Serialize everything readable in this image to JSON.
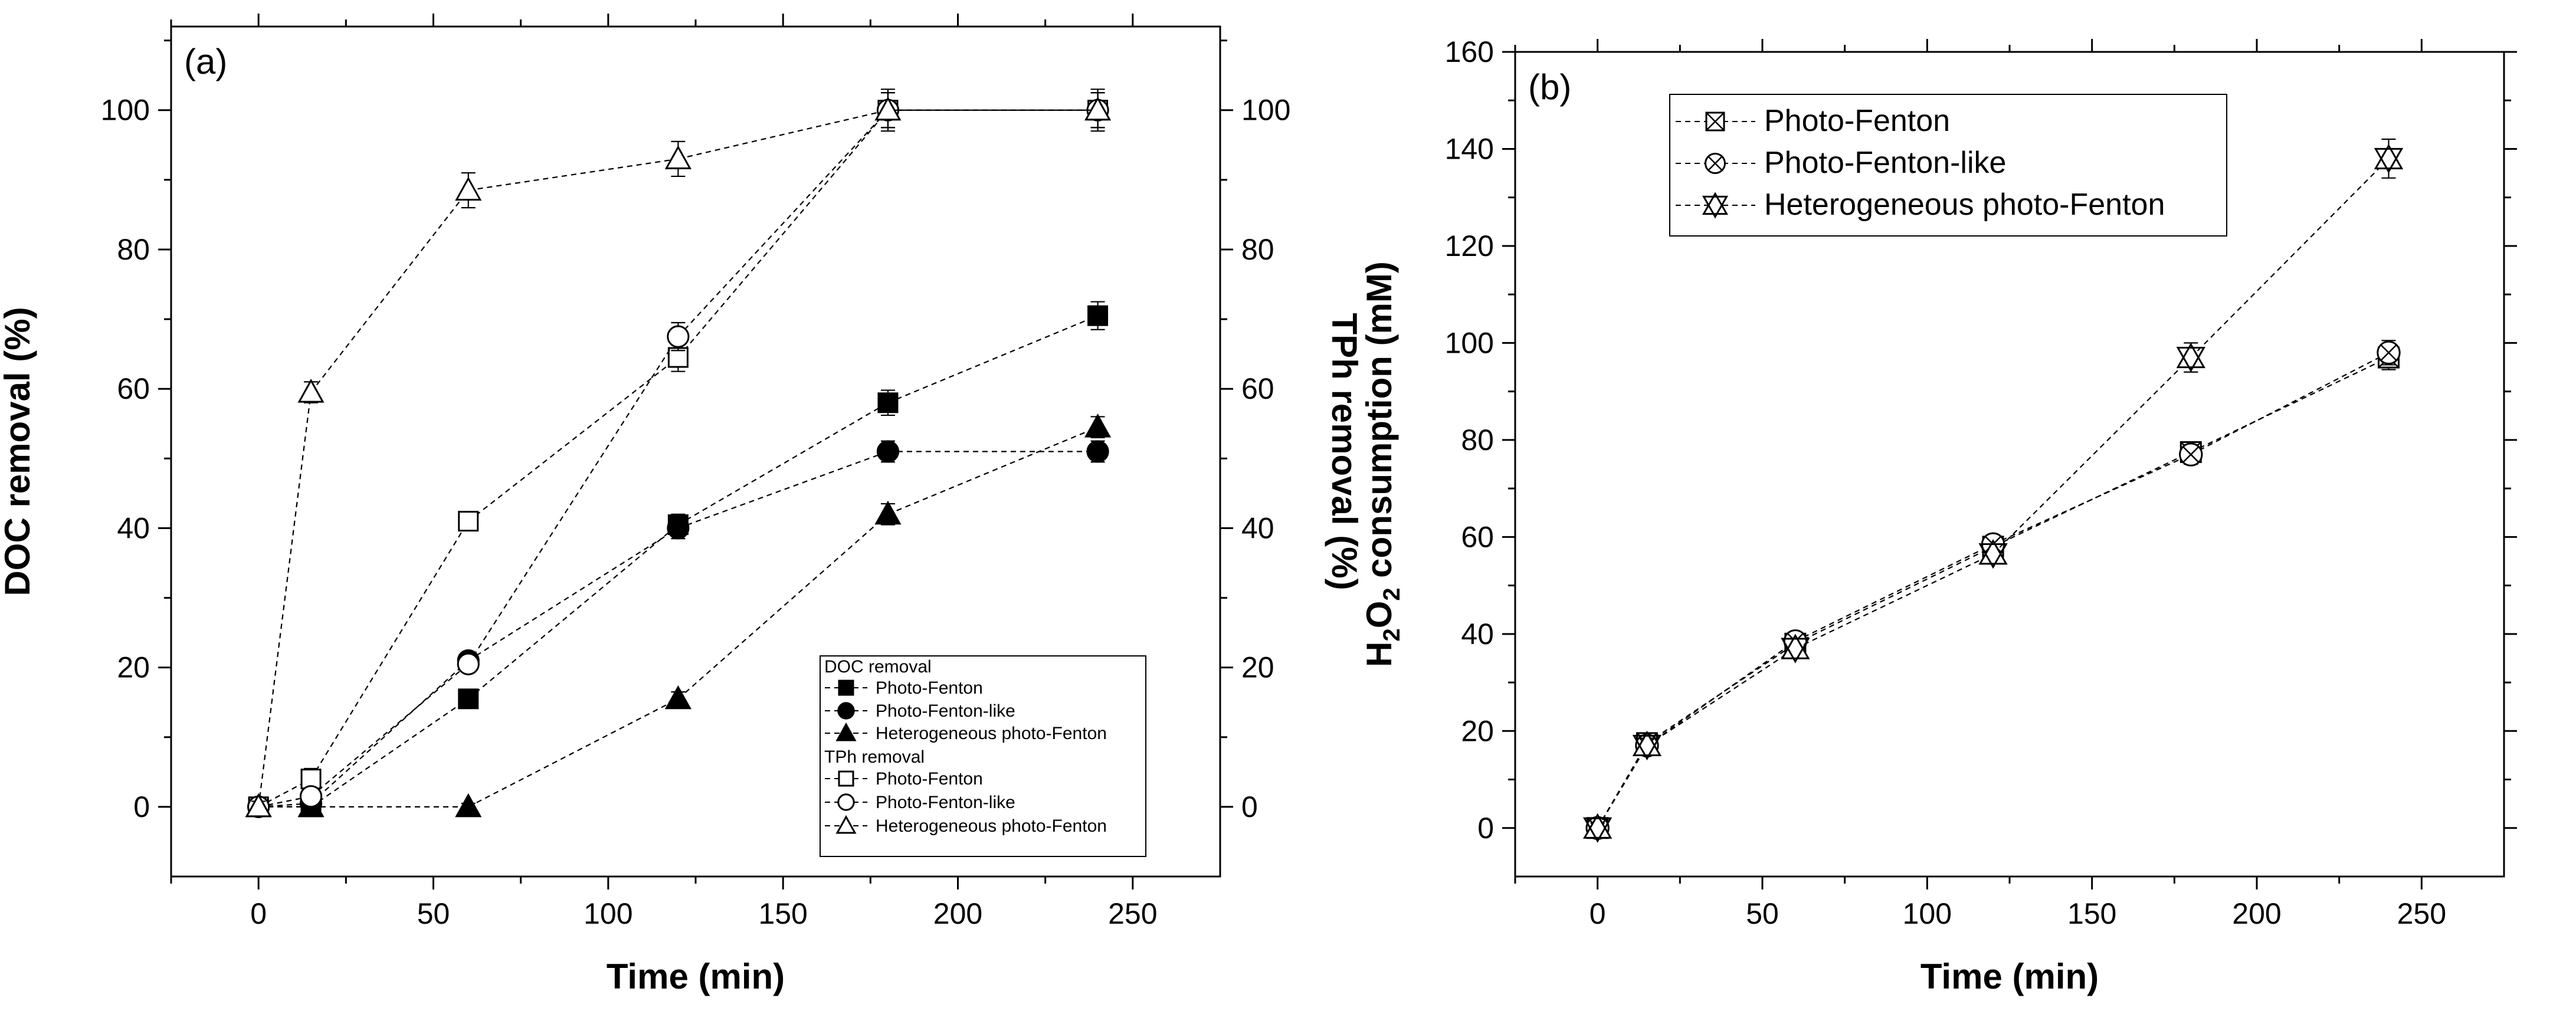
{
  "chart_data": [
    {
      "type": "line",
      "panel_label": "(a)",
      "xlabel": "Time (min)",
      "ylabel": "DOC removal (%)",
      "ylabel_right": "TPh removal (%)",
      "x_ticks": [
        "0",
        "50",
        "100",
        "150",
        "200",
        "250"
      ],
      "y_ticks": [
        "0",
        "20",
        "40",
        "60",
        "80",
        "100"
      ],
      "y2_ticks": [
        "0",
        "20",
        "40",
        "60",
        "80",
        "100"
      ],
      "xlim": [
        -25,
        275
      ],
      "ylim": [
        -10,
        112
      ],
      "legend": {
        "group1_title": "DOC removal",
        "group2_title": "TPh removal",
        "placement": "bottom-right"
      },
      "series": [
        {
          "name": "Photo-Fenton",
          "group": "DOC removal",
          "marker": "filled-square",
          "x": [
            0,
            15,
            60,
            120,
            180,
            240
          ],
          "values": [
            0,
            0,
            15.5,
            40.5,
            58,
            70.5
          ],
          "error": [
            0.8,
            0.8,
            1,
            1.5,
            1.8,
            2
          ]
        },
        {
          "name": "Photo-Fenton-like",
          "group": "DOC removal",
          "marker": "filled-circle",
          "x": [
            0,
            15,
            60,
            120,
            180,
            240
          ],
          "values": [
            0,
            0.5,
            21,
            40,
            51,
            51
          ],
          "error": [
            0.8,
            0.8,
            1,
            1.5,
            1.5,
            1.5
          ]
        },
        {
          "name": "Heterogeneous photo-Fenton",
          "group": "DOC removal",
          "marker": "filled-triangle",
          "x": [
            0,
            15,
            60,
            120,
            180,
            240
          ],
          "values": [
            0,
            0,
            0,
            15.5,
            42,
            54.5
          ],
          "error": [
            0.5,
            0.5,
            0.5,
            1,
            1.5,
            1.5
          ]
        },
        {
          "name": "Photo-Fenton",
          "group": "TPh removal",
          "marker": "open-square",
          "x": [
            0,
            15,
            60,
            120,
            180,
            240
          ],
          "values": [
            0,
            4,
            41,
            64.5,
            100,
            100
          ],
          "error": [
            0.8,
            1.5,
            1,
            2,
            2.5,
            2.5
          ]
        },
        {
          "name": "Photo-Fenton-like",
          "group": "TPh removal",
          "marker": "open-circle",
          "x": [
            0,
            15,
            60,
            120,
            180,
            240
          ],
          "values": [
            0,
            1.5,
            20.5,
            67.5,
            100,
            100
          ],
          "error": [
            0.8,
            1,
            1,
            2,
            2.5,
            2.5
          ]
        },
        {
          "name": "Heterogeneous photo-Fenton",
          "group": "TPh removal",
          "marker": "open-triangle",
          "x": [
            0,
            15,
            60,
            120,
            180,
            240
          ],
          "values": [
            0,
            59.5,
            88.5,
            93,
            100,
            100
          ],
          "error": [
            0.8,
            1.5,
            2.5,
            2.5,
            3,
            3
          ],
          "solid_segment_after_index": 4
        }
      ]
    },
    {
      "type": "line",
      "panel_label": "(b)",
      "xlabel": "Time (min)",
      "ylabel_main": "H",
      "ylabel_sub1": "2",
      "ylabel_mid": "O",
      "ylabel_sub2": "2",
      "ylabel_tail": " consumption (mM)",
      "x_ticks": [
        "0",
        "50",
        "100",
        "150",
        "200",
        "250"
      ],
      "y_ticks": [
        "0",
        "20",
        "40",
        "60",
        "80",
        "100",
        "120",
        "140",
        "160"
      ],
      "xlim": [
        -25,
        275
      ],
      "ylim": [
        -10,
        160
      ],
      "legend": {
        "placement": "top-left"
      },
      "series": [
        {
          "name": "Photo-Fenton",
          "marker": "boxed-x",
          "x": [
            0,
            15,
            60,
            120,
            180,
            240
          ],
          "values": [
            0,
            17.5,
            38,
            58,
            77.5,
            97
          ],
          "error": [
            1,
            1.5,
            1.5,
            1.5,
            2,
            2.5
          ]
        },
        {
          "name": "Photo-Fenton-like",
          "marker": "circled-x",
          "x": [
            0,
            15,
            60,
            120,
            180,
            240
          ],
          "values": [
            0,
            17,
            38.5,
            58.5,
            77,
            98
          ],
          "error": [
            1,
            1.5,
            1.5,
            1.5,
            2,
            2.5
          ]
        },
        {
          "name": "Heterogeneous photo-Fenton",
          "marker": "star-triangle",
          "x": [
            0,
            15,
            60,
            120,
            180,
            240
          ],
          "values": [
            0,
            17,
            37,
            56.5,
            97,
            138
          ],
          "error": [
            1,
            1.5,
            2,
            2,
            3,
            4
          ]
        }
      ]
    }
  ]
}
